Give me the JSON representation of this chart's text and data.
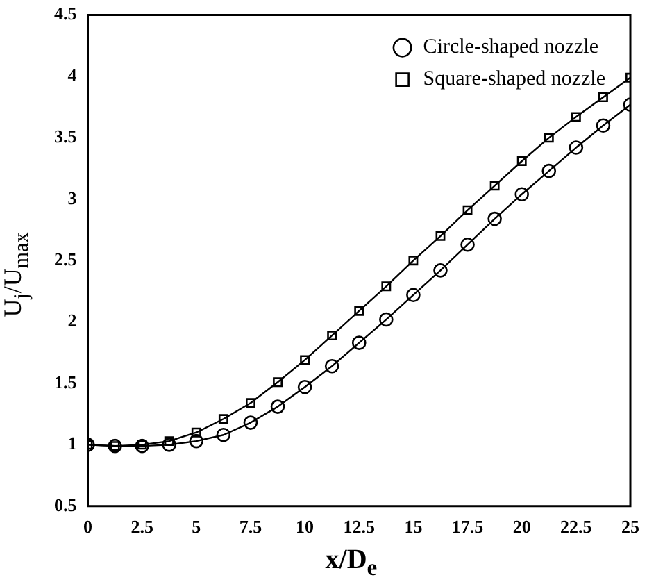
{
  "chart_data": {
    "type": "line",
    "xlabel": "x/D$_{e}$",
    "ylabel": "U$_{j}$/U$_{max}$",
    "x": [
      0,
      1.25,
      2.5,
      3.75,
      5,
      6.25,
      7.5,
      8.75,
      10,
      11.25,
      12.5,
      13.75,
      15,
      16.25,
      17.5,
      18.75,
      20,
      21.25,
      22.5,
      23.75,
      25
    ],
    "series": [
      {
        "name": "Circle-shaped nozzle",
        "color": "#000000",
        "marker": "circle",
        "values": [
          1.0,
          0.99,
          0.99,
          1.0,
          1.03,
          1.08,
          1.18,
          1.31,
          1.47,
          1.64,
          1.83,
          2.02,
          2.22,
          2.42,
          2.63,
          2.84,
          3.04,
          3.23,
          3.42,
          3.6,
          3.77
        ]
      },
      {
        "name": "Square-shaped nozzle",
        "color": "#000000",
        "marker": "square",
        "values": [
          1.0,
          0.99,
          1.0,
          1.03,
          1.1,
          1.21,
          1.34,
          1.51,
          1.69,
          1.89,
          2.09,
          2.29,
          2.5,
          2.7,
          2.91,
          3.11,
          3.31,
          3.5,
          3.67,
          3.83,
          3.99
        ]
      }
    ],
    "xlim": [
      0,
      25
    ],
    "xticks": [
      0,
      2.5,
      5,
      7.5,
      10,
      12.5,
      15,
      17.5,
      20,
      22.5,
      25
    ],
    "ylim": [
      0.5,
      4.5
    ],
    "yticks": [
      0.5,
      1,
      1.5,
      2,
      2.5,
      3,
      3.5,
      4,
      4.5
    ],
    "grid": false,
    "legend": "top right",
    "line_style": "solid"
  }
}
